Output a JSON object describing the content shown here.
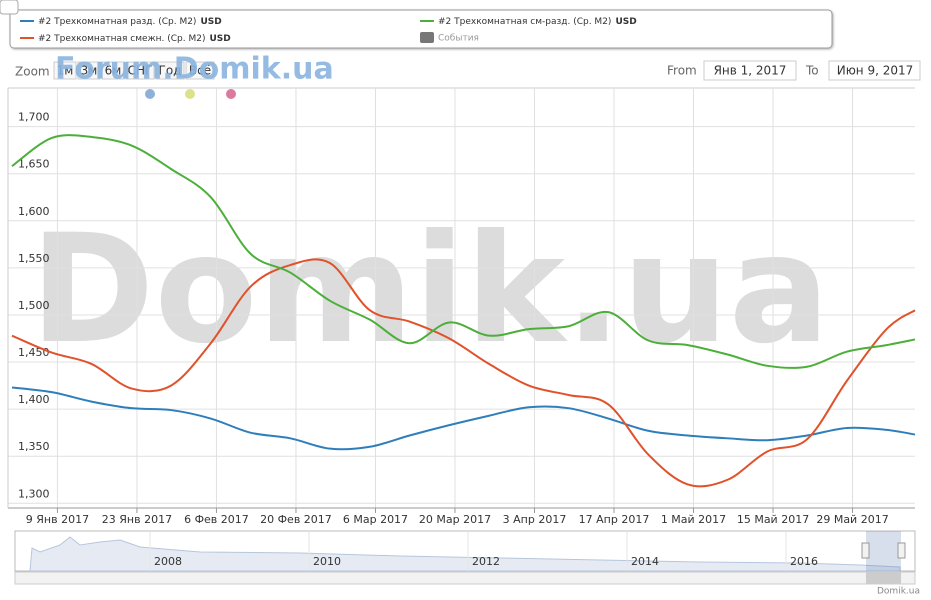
{
  "chart_data": {
    "type": "line",
    "x": [
      "2017-01-01",
      "2017-01-08",
      "2017-01-15",
      "2017-01-22",
      "2017-01-29",
      "2017-02-05",
      "2017-02-12",
      "2017-02-19",
      "2017-02-26",
      "2017-03-05",
      "2017-03-12",
      "2017-03-19",
      "2017-03-26",
      "2017-04-02",
      "2017-04-09",
      "2017-04-16",
      "2017-04-23",
      "2017-04-30",
      "2017-05-07",
      "2017-05-14",
      "2017-05-21",
      "2017-05-28",
      "2017-06-04",
      "2017-06-09"
    ],
    "series": [
      {
        "name": "#2 Трехкомнатная разд. (Ср. M2)",
        "currency": "USD",
        "color": "#2f7ebc",
        "values": [
          1423,
          1418,
          1408,
          1401,
          1399,
          1390,
          1375,
          1369,
          1358,
          1360,
          1372,
          1383,
          1393,
          1402,
          1401,
          1390,
          1377,
          1372,
          1369,
          1367,
          1372,
          1380,
          1378,
          1373
        ]
      },
      {
        "name": "#2 Трехкомнатная смежн. (Ср. M2)",
        "currency": "USD",
        "color": "#e0522a",
        "values": [
          1478,
          1460,
          1448,
          1422,
          1425,
          1470,
          1530,
          1553,
          1555,
          1505,
          1493,
          1475,
          1448,
          1425,
          1415,
          1405,
          1352,
          1320,
          1325,
          1355,
          1368,
          1430,
          1485,
          1505
        ]
      },
      {
        "name": "#2 Трехкомнатная см-разд. (Ср. M2)",
        "currency": "USD",
        "color": "#4caf3a",
        "values": [
          1658,
          1688,
          1689,
          1680,
          1655,
          1625,
          1565,
          1545,
          1515,
          1495,
          1470,
          1492,
          1478,
          1485,
          1488,
          1503,
          1473,
          1468,
          1458,
          1446,
          1445,
          1461,
          1468,
          1474
        ]
      }
    ],
    "events_label": "События",
    "xlim": [
      "2017-01-01",
      "2017-06-09"
    ],
    "xticks": [
      {
        "value": "2017-01-09",
        "label": "9 Янв 2017"
      },
      {
        "value": "2017-01-23",
        "label": "23 Янв 2017"
      },
      {
        "value": "2017-02-06",
        "label": "6 Фев 2017"
      },
      {
        "value": "2017-02-20",
        "label": "20 Фев 2017"
      },
      {
        "value": "2017-03-06",
        "label": "6 Мар 2017"
      },
      {
        "value": "2017-03-20",
        "label": "20 Мар 2017"
      },
      {
        "value": "2017-04-03",
        "label": "3 Апр 2017"
      },
      {
        "value": "2017-04-17",
        "label": "17 Апр 2017"
      },
      {
        "value": "2017-05-01",
        "label": "1 Май 2017"
      },
      {
        "value": "2017-05-15",
        "label": "15 Май 2017"
      },
      {
        "value": "2017-05-29",
        "label": "29 Май 2017"
      }
    ],
    "ylim": [
      1295,
      1741
    ],
    "yticks": [
      {
        "value": 1300,
        "label": "1,300"
      },
      {
        "value": 1350,
        "label": "1,350"
      },
      {
        "value": 1400,
        "label": "1,400"
      },
      {
        "value": 1450,
        "label": "1,450"
      },
      {
        "value": 1500,
        "label": "1,500"
      },
      {
        "value": 1550,
        "label": "1,550"
      },
      {
        "value": 1600,
        "label": "1,600"
      },
      {
        "value": 1650,
        "label": "1,650"
      },
      {
        "value": 1700,
        "label": "1,700"
      }
    ],
    "grid": true
  },
  "range_selector": {
    "zoom": "Zoom",
    "buttons": [
      "1м",
      "3м",
      "6м",
      "СНГ",
      "Год",
      "Всё"
    ],
    "from": "From",
    "from_value": "Янв 1, 2017",
    "to": "To",
    "to_value": "Июн 9, 2017"
  },
  "navigator": {
    "years": [
      "2008",
      "2010",
      "2012",
      "2014",
      "2016"
    ]
  },
  "watermarks": {
    "forum": "Forum.Domik.ua",
    "main": "Domik.ua"
  },
  "credits": "Domik.ua"
}
